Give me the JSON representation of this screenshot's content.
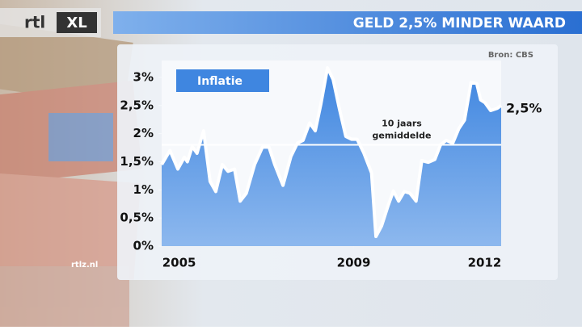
{
  "branding": {
    "logo": [
      "rtl",
      "XL"
    ],
    "watermark": "rtlz.nl"
  },
  "chart_data": {
    "type": "area",
    "title": "GELD 2,5% MINDER WAARD",
    "source": "Bron: CBS",
    "x": [
      2004.6,
      2004.79,
      2004.97,
      2005.12,
      2005.19,
      2005.3,
      2005.41,
      2005.56,
      2005.71,
      2005.84,
      2005.99,
      2006.12,
      2006.27,
      2006.4,
      2006.54,
      2006.73,
      2006.91,
      2007.06,
      2007.19,
      2007.38,
      2007.56,
      2007.71,
      2007.84,
      2007.99,
      2008.12,
      2008.25,
      2008.4,
      2008.53,
      2008.67,
      2008.82,
      2008.95,
      2009.08,
      2009.23,
      2009.41,
      2009.51,
      2009.64,
      2009.79,
      2009.91,
      2010.03,
      2010.16,
      2010.29,
      2010.43,
      2010.56,
      2010.71,
      2010.86,
      2010.99,
      2011.12,
      2011.27,
      2011.41,
      2011.54,
      2011.69,
      2011.82,
      2011.91,
      2012.01,
      2012.14,
      2012.29,
      2012.38
    ],
    "series": [
      {
        "name": "Inflatie",
        "color": "#3f86e0",
        "values": [
          1.45,
          1.7,
          1.37,
          1.58,
          1.5,
          1.77,
          1.65,
          2.05,
          1.15,
          0.97,
          1.45,
          1.33,
          1.37,
          0.8,
          0.94,
          1.45,
          1.76,
          1.76,
          1.45,
          1.08,
          1.59,
          1.83,
          1.88,
          2.19,
          2.05,
          2.53,
          3.17,
          2.96,
          2.45,
          1.95,
          1.9,
          1.9,
          1.66,
          1.3,
          0.17,
          0.36,
          0.72,
          0.98,
          0.8,
          0.97,
          0.94,
          0.8,
          1.52,
          1.49,
          1.54,
          1.8,
          1.88,
          1.83,
          2.09,
          2.24,
          2.91,
          2.89,
          2.6,
          2.55,
          2.41,
          2.45,
          2.5
        ],
        "end_label": "2,5%"
      }
    ],
    "reference": {
      "value": 1.8,
      "label": [
        "10 jaars",
        "gemiddelde"
      ]
    },
    "xlim": [
      2004.6,
      2012.38
    ],
    "xticks": [
      2005,
      2009,
      2012
    ],
    "ylim": [
      0,
      3.3
    ],
    "yticks": [
      {
        "value": 0,
        "label": "0%"
      },
      {
        "value": 0.5,
        "label": "0,5%"
      },
      {
        "value": 1,
        "label": "1%"
      },
      {
        "value": 1.5,
        "label": "1,5%"
      },
      {
        "value": 2,
        "label": "2%"
      },
      {
        "value": 2.5,
        "label": "2,5%"
      },
      {
        "value": 3,
        "label": "3%"
      }
    ],
    "grid": false
  }
}
